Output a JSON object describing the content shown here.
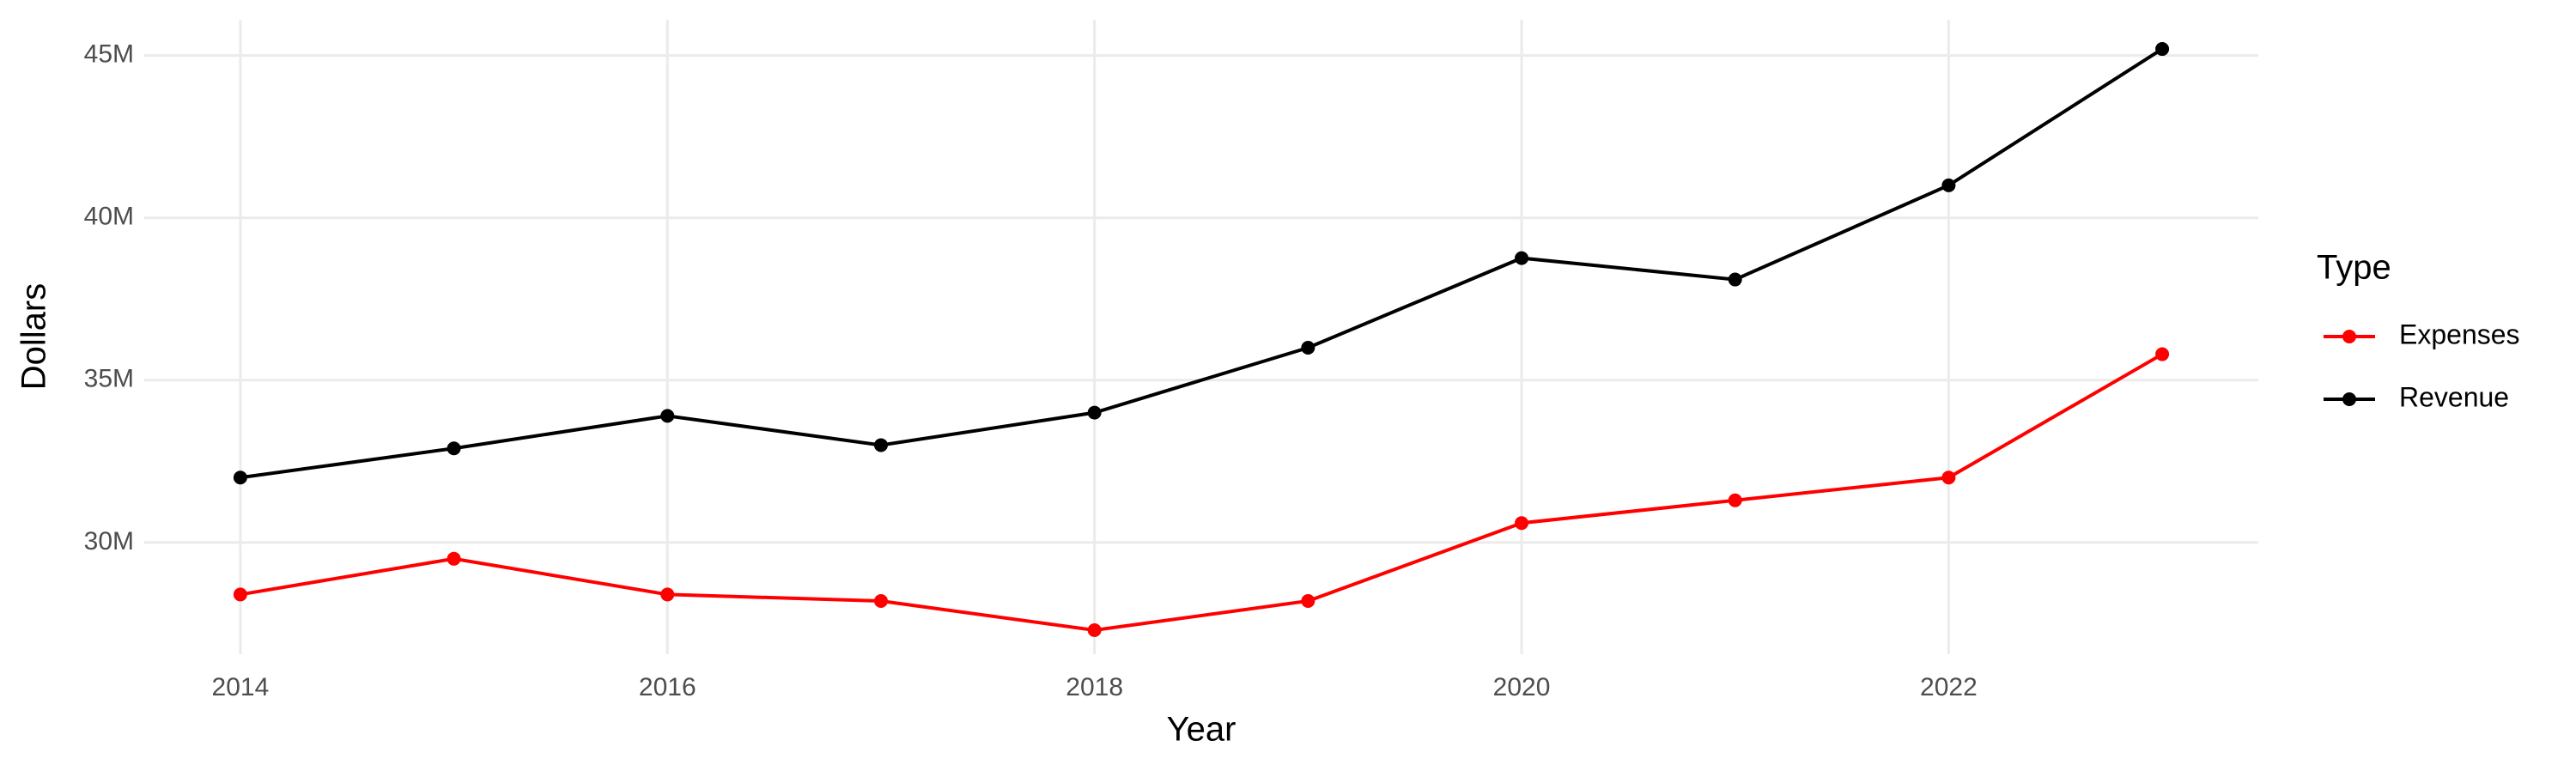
{
  "chart_data": {
    "type": "line",
    "x_label": "Year",
    "y_label": "Dollars",
    "legend_title": "Type",
    "x": [
      2014,
      2015,
      2016,
      2017,
      2018,
      2019,
      2020,
      2021,
      2022,
      2023
    ],
    "series": [
      {
        "name": "Expenses",
        "color": "#ff0000",
        "values": [
          28400000,
          29500000,
          28400000,
          28200000,
          27300000,
          28200000,
          30600000,
          31300000,
          32000000,
          35800000
        ]
      },
      {
        "name": "Revenue",
        "color": "#000000",
        "values": [
          32000000,
          32900000,
          33900000,
          33000000,
          34000000,
          36000000,
          38760000,
          38100000,
          41000000,
          45200000
        ]
      }
    ],
    "xlim": [
      2013.55,
      2023.45
    ],
    "xticks": [
      2014,
      2016,
      2018,
      2020,
      2022
    ],
    "ylim": [
      26560000,
      46100000
    ],
    "yticks": [
      {
        "value": 30000000,
        "label": "30M"
      },
      {
        "value": 35000000,
        "label": "35M"
      },
      {
        "value": 40000000,
        "label": "40M"
      },
      {
        "value": 45000000,
        "label": "45M"
      }
    ],
    "grid": true,
    "legend": "right"
  }
}
